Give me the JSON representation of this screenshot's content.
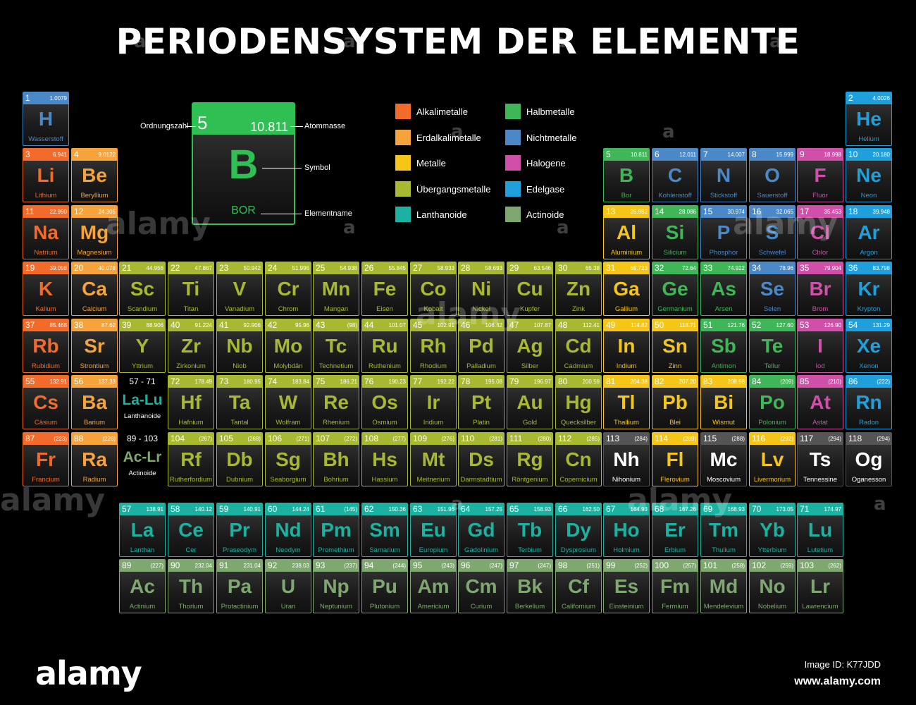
{
  "title": "PERIODENSYSTEM DER ELEMENTE",
  "colors": {
    "alkali": "#f26b2a",
    "earth": "#f5a33a",
    "metal": "#f5c518",
    "transition": "#a8b830",
    "lanthanide": "#1bb2a2",
    "metalloid": "#3fb658",
    "nonmetal": "#4a88c8",
    "halogen": "#d04fa8",
    "noble": "#1fa0dc",
    "actinide": "#7fa870",
    "unknown": "#555555"
  },
  "legend": [
    {
      "key": "alkali",
      "label": "Alkalimetalle"
    },
    {
      "key": "earth",
      "label": "Erdalkalimetalle"
    },
    {
      "key": "metal",
      "label": "Metalle"
    },
    {
      "key": "transition",
      "label": "Übergangsmetalle"
    },
    {
      "key": "lanthanide",
      "label": "Lanthanoide"
    },
    {
      "key": "metalloid",
      "label": "Halbmetalle"
    },
    {
      "key": "nonmetal",
      "label": "Nichtmetalle"
    },
    {
      "key": "halogen",
      "label": "Halogene"
    },
    {
      "key": "noble",
      "label": "Edelgase"
    },
    {
      "key": "actinide",
      "label": "Actinoide"
    }
  ],
  "key_card": {
    "number": "5",
    "mass": "10.811",
    "symbol": "B",
    "name": "BOR",
    "label_number": "Ordnungszahl",
    "label_mass": "Atommasse",
    "label_symbol": "Symbol",
    "label_name": "Elementname"
  },
  "placeholders": {
    "lanthanides": {
      "range": "57 - 71",
      "symbol": "La-Lu",
      "name": "Lanthanoide"
    },
    "actinides": {
      "range": "89 - 103",
      "symbol": "Ac-Lr",
      "name": "Actinoide"
    }
  },
  "elements": [
    {
      "n": 1,
      "s": "H",
      "name": "Wasserstoff",
      "m": "1.0079",
      "cat": "nonmetal",
      "r": 1,
      "c": 1
    },
    {
      "n": 2,
      "s": "He",
      "name": "Helium",
      "m": "4.0026",
      "cat": "noble",
      "r": 1,
      "c": 18
    },
    {
      "n": 3,
      "s": "Li",
      "name": "Lithium",
      "m": "6.941",
      "cat": "alkali",
      "r": 2,
      "c": 1
    },
    {
      "n": 4,
      "s": "Be",
      "name": "Beryllium",
      "m": "9.0122",
      "cat": "earth",
      "r": 2,
      "c": 2
    },
    {
      "n": 5,
      "s": "B",
      "name": "Bor",
      "m": "10.811",
      "cat": "metalloid",
      "r": 2,
      "c": 13
    },
    {
      "n": 6,
      "s": "C",
      "name": "Kohlenstoff",
      "m": "12.011",
      "cat": "nonmetal",
      "r": 2,
      "c": 14
    },
    {
      "n": 7,
      "s": "N",
      "name": "Stickstoff",
      "m": "14.007",
      "cat": "nonmetal",
      "r": 2,
      "c": 15
    },
    {
      "n": 8,
      "s": "O",
      "name": "Sauerstoff",
      "m": "15.999",
      "cat": "nonmetal",
      "r": 2,
      "c": 16
    },
    {
      "n": 9,
      "s": "F",
      "name": "Fluor",
      "m": "18.998",
      "cat": "halogen",
      "r": 2,
      "c": 17
    },
    {
      "n": 10,
      "s": "Ne",
      "name": "Neon",
      "m": "20.180",
      "cat": "noble",
      "r": 2,
      "c": 18
    },
    {
      "n": 11,
      "s": "Na",
      "name": "Natrium",
      "m": "22.990",
      "cat": "alkali",
      "r": 3,
      "c": 1
    },
    {
      "n": 12,
      "s": "Mg",
      "name": "Magnesium",
      "m": "24.305",
      "cat": "earth",
      "r": 3,
      "c": 2
    },
    {
      "n": 13,
      "s": "Al",
      "name": "Aluminium",
      "m": "26.982",
      "cat": "metal",
      "r": 3,
      "c": 13
    },
    {
      "n": 14,
      "s": "Si",
      "name": "Silicium",
      "m": "28.086",
      "cat": "metalloid",
      "r": 3,
      "c": 14
    },
    {
      "n": 15,
      "s": "P",
      "name": "Phosphor",
      "m": "30.974",
      "cat": "nonmetal",
      "r": 3,
      "c": 15
    },
    {
      "n": 16,
      "s": "S",
      "name": "Schwefel",
      "m": "32.065",
      "cat": "nonmetal",
      "r": 3,
      "c": 16
    },
    {
      "n": 17,
      "s": "Cl",
      "name": "Chlor",
      "m": "35.453",
      "cat": "halogen",
      "r": 3,
      "c": 17
    },
    {
      "n": 18,
      "s": "Ar",
      "name": "Argon",
      "m": "39.948",
      "cat": "noble",
      "r": 3,
      "c": 18
    },
    {
      "n": 19,
      "s": "K",
      "name": "Kalium",
      "m": "39.098",
      "cat": "alkali",
      "r": 4,
      "c": 1
    },
    {
      "n": 20,
      "s": "Ca",
      "name": "Calcium",
      "m": "40.078",
      "cat": "earth",
      "r": 4,
      "c": 2
    },
    {
      "n": 21,
      "s": "Sc",
      "name": "Scandium",
      "m": "44.956",
      "cat": "transition",
      "r": 4,
      "c": 3
    },
    {
      "n": 22,
      "s": "Ti",
      "name": "Titan",
      "m": "47.867",
      "cat": "transition",
      "r": 4,
      "c": 4
    },
    {
      "n": 23,
      "s": "V",
      "name": "Vanadium",
      "m": "50.942",
      "cat": "transition",
      "r": 4,
      "c": 5
    },
    {
      "n": 24,
      "s": "Cr",
      "name": "Chrom",
      "m": "51.996",
      "cat": "transition",
      "r": 4,
      "c": 6
    },
    {
      "n": 25,
      "s": "Mn",
      "name": "Mangan",
      "m": "54.938",
      "cat": "transition",
      "r": 4,
      "c": 7
    },
    {
      "n": 26,
      "s": "Fe",
      "name": "Eisen",
      "m": "55.845",
      "cat": "transition",
      "r": 4,
      "c": 8
    },
    {
      "n": 27,
      "s": "Co",
      "name": "Kobalt",
      "m": "58.933",
      "cat": "transition",
      "r": 4,
      "c": 9
    },
    {
      "n": 28,
      "s": "Ni",
      "name": "Nickel",
      "m": "58.693",
      "cat": "transition",
      "r": 4,
      "c": 10
    },
    {
      "n": 29,
      "s": "Cu",
      "name": "Kupfer",
      "m": "63.546",
      "cat": "transition",
      "r": 4,
      "c": 11
    },
    {
      "n": 30,
      "s": "Zn",
      "name": "Zink",
      "m": "65.38",
      "cat": "transition",
      "r": 4,
      "c": 12
    },
    {
      "n": 31,
      "s": "Ga",
      "name": "Gallium",
      "m": "69.723",
      "cat": "metal",
      "r": 4,
      "c": 13
    },
    {
      "n": 32,
      "s": "Ge",
      "name": "Germanium",
      "m": "72.64",
      "cat": "metalloid",
      "r": 4,
      "c": 14
    },
    {
      "n": 33,
      "s": "As",
      "name": "Arsen",
      "m": "74.922",
      "cat": "metalloid",
      "r": 4,
      "c": 15
    },
    {
      "n": 34,
      "s": "Se",
      "name": "Selen",
      "m": "78.96",
      "cat": "nonmetal",
      "r": 4,
      "c": 16
    },
    {
      "n": 35,
      "s": "Br",
      "name": "Brom",
      "m": "79.904",
      "cat": "halogen",
      "r": 4,
      "c": 17
    },
    {
      "n": 36,
      "s": "Kr",
      "name": "Krypton",
      "m": "83.798",
      "cat": "noble",
      "r": 4,
      "c": 18
    },
    {
      "n": 37,
      "s": "Rb",
      "name": "Rubidium",
      "m": "85.468",
      "cat": "alkali",
      "r": 5,
      "c": 1
    },
    {
      "n": 38,
      "s": "Sr",
      "name": "Strontium",
      "m": "87.62",
      "cat": "earth",
      "r": 5,
      "c": 2
    },
    {
      "n": 39,
      "s": "Y",
      "name": "Yttrium",
      "m": "88.906",
      "cat": "transition",
      "r": 5,
      "c": 3
    },
    {
      "n": 40,
      "s": "Zr",
      "name": "Zirkonium",
      "m": "91.224",
      "cat": "transition",
      "r": 5,
      "c": 4
    },
    {
      "n": 41,
      "s": "Nb",
      "name": "Niob",
      "m": "92.906",
      "cat": "transition",
      "r": 5,
      "c": 5
    },
    {
      "n": 42,
      "s": "Mo",
      "name": "Molybdän",
      "m": "95.96",
      "cat": "transition",
      "r": 5,
      "c": 6
    },
    {
      "n": 43,
      "s": "Tc",
      "name": "Technetium",
      "m": "(98)",
      "cat": "transition",
      "r": 5,
      "c": 7
    },
    {
      "n": 44,
      "s": "Ru",
      "name": "Ruthenium",
      "m": "101.07",
      "cat": "transition",
      "r": 5,
      "c": 8
    },
    {
      "n": 45,
      "s": "Rh",
      "name": "Rhodium",
      "m": "102.91",
      "cat": "transition",
      "r": 5,
      "c": 9
    },
    {
      "n": 46,
      "s": "Pd",
      "name": "Palladium",
      "m": "106.42",
      "cat": "transition",
      "r": 5,
      "c": 10
    },
    {
      "n": 47,
      "s": "Ag",
      "name": "Silber",
      "m": "107.87",
      "cat": "transition",
      "r": 5,
      "c": 11
    },
    {
      "n": 48,
      "s": "Cd",
      "name": "Cadmium",
      "m": "112.41",
      "cat": "transition",
      "r": 5,
      "c": 12
    },
    {
      "n": 49,
      "s": "In",
      "name": "Indium",
      "m": "114.82",
      "cat": "metal",
      "r": 5,
      "c": 13
    },
    {
      "n": 50,
      "s": "Sn",
      "name": "Zinn",
      "m": "118.71",
      "cat": "metal",
      "r": 5,
      "c": 14
    },
    {
      "n": 51,
      "s": "Sb",
      "name": "Antimon",
      "m": "121.76",
      "cat": "metalloid",
      "r": 5,
      "c": 15
    },
    {
      "n": 52,
      "s": "Te",
      "name": "Tellur",
      "m": "127.60",
      "cat": "metalloid",
      "r": 5,
      "c": 16
    },
    {
      "n": 53,
      "s": "I",
      "name": "Iod",
      "m": "126.90",
      "cat": "halogen",
      "r": 5,
      "c": 17
    },
    {
      "n": 54,
      "s": "Xe",
      "name": "Xenon",
      "m": "131.29",
      "cat": "noble",
      "r": 5,
      "c": 18
    },
    {
      "n": 55,
      "s": "Cs",
      "name": "Cäsium",
      "m": "132.91",
      "cat": "alkali",
      "r": 6,
      "c": 1
    },
    {
      "n": 56,
      "s": "Ba",
      "name": "Barium",
      "m": "137.33",
      "cat": "earth",
      "r": 6,
      "c": 2
    },
    {
      "n": 72,
      "s": "Hf",
      "name": "Hafnium",
      "m": "178.49",
      "cat": "transition",
      "r": 6,
      "c": 4
    },
    {
      "n": 73,
      "s": "Ta",
      "name": "Tantal",
      "m": "180.95",
      "cat": "transition",
      "r": 6,
      "c": 5
    },
    {
      "n": 74,
      "s": "W",
      "name": "Wolfram",
      "m": "183.84",
      "cat": "transition",
      "r": 6,
      "c": 6
    },
    {
      "n": 75,
      "s": "Re",
      "name": "Rhenium",
      "m": "186.21",
      "cat": "transition",
      "r": 6,
      "c": 7
    },
    {
      "n": 76,
      "s": "Os",
      "name": "Osmium",
      "m": "190.23",
      "cat": "transition",
      "r": 6,
      "c": 8
    },
    {
      "n": 77,
      "s": "Ir",
      "name": "Iridium",
      "m": "192.22",
      "cat": "transition",
      "r": 6,
      "c": 9
    },
    {
      "n": 78,
      "s": "Pt",
      "name": "Platin",
      "m": "195.08",
      "cat": "transition",
      "r": 6,
      "c": 10
    },
    {
      "n": 79,
      "s": "Au",
      "name": "Gold",
      "m": "196.97",
      "cat": "transition",
      "r": 6,
      "c": 11
    },
    {
      "n": 80,
      "s": "Hg",
      "name": "Quecksilber",
      "m": "200.59",
      "cat": "transition",
      "r": 6,
      "c": 12
    },
    {
      "n": 81,
      "s": "Tl",
      "name": "Thallium",
      "m": "204.38",
      "cat": "metal",
      "r": 6,
      "c": 13
    },
    {
      "n": 82,
      "s": "Pb",
      "name": "Blei",
      "m": "207.20",
      "cat": "metal",
      "r": 6,
      "c": 14
    },
    {
      "n": 83,
      "s": "Bi",
      "name": "Wismut",
      "m": "208.98",
      "cat": "metal",
      "r": 6,
      "c": 15
    },
    {
      "n": 84,
      "s": "Po",
      "name": "Polonium",
      "m": "(209)",
      "cat": "metalloid",
      "r": 6,
      "c": 16
    },
    {
      "n": 85,
      "s": "At",
      "name": "Astat",
      "m": "(210)",
      "cat": "halogen",
      "r": 6,
      "c": 17
    },
    {
      "n": 86,
      "s": "Rn",
      "name": "Radon",
      "m": "(222)",
      "cat": "noble",
      "r": 6,
      "c": 18
    },
    {
      "n": 87,
      "s": "Fr",
      "name": "Francium",
      "m": "(223)",
      "cat": "alkali",
      "r": 7,
      "c": 1
    },
    {
      "n": 88,
      "s": "Ra",
      "name": "Radium",
      "m": "(226)",
      "cat": "earth",
      "r": 7,
      "c": 2
    },
    {
      "n": 104,
      "s": "Rf",
      "name": "Rutherfordium",
      "m": "(267)",
      "cat": "transition",
      "r": 7,
      "c": 4
    },
    {
      "n": 105,
      "s": "Db",
      "name": "Dubnium",
      "m": "(268)",
      "cat": "transition",
      "r": 7,
      "c": 5
    },
    {
      "n": 106,
      "s": "Sg",
      "name": "Seaborgium",
      "m": "(271)",
      "cat": "transition",
      "r": 7,
      "c": 6
    },
    {
      "n": 107,
      "s": "Bh",
      "name": "Bohrium",
      "m": "(272)",
      "cat": "transition",
      "r": 7,
      "c": 7
    },
    {
      "n": 108,
      "s": "Hs",
      "name": "Hassium",
      "m": "(277)",
      "cat": "transition",
      "r": 7,
      "c": 8
    },
    {
      "n": 109,
      "s": "Mt",
      "name": "Meitnerium",
      "m": "(276)",
      "cat": "transition",
      "r": 7,
      "c": 9
    },
    {
      "n": 110,
      "s": "Ds",
      "name": "Darmstadtium",
      "m": "(281)",
      "cat": "transition",
      "r": 7,
      "c": 10
    },
    {
      "n": 111,
      "s": "Rg",
      "name": "Röntgenium",
      "m": "(280)",
      "cat": "transition",
      "r": 7,
      "c": 11
    },
    {
      "n": 112,
      "s": "Cn",
      "name": "Copernicium",
      "m": "(285)",
      "cat": "transition",
      "r": 7,
      "c": 12
    },
    {
      "n": 113,
      "s": "Nh",
      "name": "Nihonium",
      "m": "(284)",
      "cat": "unknown",
      "r": 7,
      "c": 13
    },
    {
      "n": 114,
      "s": "Fl",
      "name": "Flerovium",
      "m": "(289)",
      "cat": "metal",
      "r": 7,
      "c": 14
    },
    {
      "n": 115,
      "s": "Mc",
      "name": "Moscovium",
      "m": "(288)",
      "cat": "unknown",
      "r": 7,
      "c": 15
    },
    {
      "n": 116,
      "s": "Lv",
      "name": "Livermorium",
      "m": "(292)",
      "cat": "metal",
      "r": 7,
      "c": 16
    },
    {
      "n": 117,
      "s": "Ts",
      "name": "Tennessine",
      "m": "(294)",
      "cat": "unknown",
      "r": 7,
      "c": 17
    },
    {
      "n": 118,
      "s": "Og",
      "name": "Oganesson",
      "m": "(294)",
      "cat": "unknown",
      "r": 7,
      "c": 18
    },
    {
      "n": 57,
      "s": "La",
      "name": "Lanthan",
      "m": "138.91",
      "cat": "lanthanide",
      "r": 9,
      "c": 3
    },
    {
      "n": 58,
      "s": "Ce",
      "name": "Cer",
      "m": "140.12",
      "cat": "lanthanide",
      "r": 9,
      "c": 4
    },
    {
      "n": 59,
      "s": "Pr",
      "name": "Praseodym",
      "m": "140.91",
      "cat": "lanthanide",
      "r": 9,
      "c": 5
    },
    {
      "n": 60,
      "s": "Nd",
      "name": "Neodym",
      "m": "144.24",
      "cat": "lanthanide",
      "r": 9,
      "c": 6
    },
    {
      "n": 61,
      "s": "Pm",
      "name": "Promethium",
      "m": "(145)",
      "cat": "lanthanide",
      "r": 9,
      "c": 7
    },
    {
      "n": 62,
      "s": "Sm",
      "name": "Samarium",
      "m": "150.36",
      "cat": "lanthanide",
      "r": 9,
      "c": 8
    },
    {
      "n": 63,
      "s": "Eu",
      "name": "Europium",
      "m": "151.96",
      "cat": "lanthanide",
      "r": 9,
      "c": 9
    },
    {
      "n": 64,
      "s": "Gd",
      "name": "Gadolinium",
      "m": "157.25",
      "cat": "lanthanide",
      "r": 9,
      "c": 10
    },
    {
      "n": 65,
      "s": "Tb",
      "name": "Terbium",
      "m": "158.93",
      "cat": "lanthanide",
      "r": 9,
      "c": 11
    },
    {
      "n": 66,
      "s": "Dy",
      "name": "Dysprosium",
      "m": "162.50",
      "cat": "lanthanide",
      "r": 9,
      "c": 12
    },
    {
      "n": 67,
      "s": "Ho",
      "name": "Holmium",
      "m": "164.93",
      "cat": "lanthanide",
      "r": 9,
      "c": 13
    },
    {
      "n": 68,
      "s": "Er",
      "name": "Erbium",
      "m": "167.26",
      "cat": "lanthanide",
      "r": 9,
      "c": 14
    },
    {
      "n": 69,
      "s": "Tm",
      "name": "Thulium",
      "m": "168.93",
      "cat": "lanthanide",
      "r": 9,
      "c": 15
    },
    {
      "n": 70,
      "s": "Yb",
      "name": "Ytterbium",
      "m": "173.05",
      "cat": "lanthanide",
      "r": 9,
      "c": 16
    },
    {
      "n": 71,
      "s": "Lu",
      "name": "Lutetium",
      "m": "174.97",
      "cat": "lanthanide",
      "r": 9,
      "c": 17
    },
    {
      "n": 89,
      "s": "Ac",
      "name": "Actinium",
      "m": "(227)",
      "cat": "actinide",
      "r": 10,
      "c": 3
    },
    {
      "n": 90,
      "s": "Th",
      "name": "Thorium",
      "m": "232.04",
      "cat": "actinide",
      "r": 10,
      "c": 4
    },
    {
      "n": 91,
      "s": "Pa",
      "name": "Protactinium",
      "m": "231.04",
      "cat": "actinide",
      "r": 10,
      "c": 5
    },
    {
      "n": 92,
      "s": "U",
      "name": "Uran",
      "m": "238.03",
      "cat": "actinide",
      "r": 10,
      "c": 6
    },
    {
      "n": 93,
      "s": "Np",
      "name": "Neptunium",
      "m": "(237)",
      "cat": "actinide",
      "r": 10,
      "c": 7
    },
    {
      "n": 94,
      "s": "Pu",
      "name": "Plutonium",
      "m": "(244)",
      "cat": "actinide",
      "r": 10,
      "c": 8
    },
    {
      "n": 95,
      "s": "Am",
      "name": "Americium",
      "m": "(243)",
      "cat": "actinide",
      "r": 10,
      "c": 9
    },
    {
      "n": 96,
      "s": "Cm",
      "name": "Curium",
      "m": "(247)",
      "cat": "actinide",
      "r": 10,
      "c": 10
    },
    {
      "n": 97,
      "s": "Bk",
      "name": "Berkelium",
      "m": "(247)",
      "cat": "actinide",
      "r": 10,
      "c": 11
    },
    {
      "n": 98,
      "s": "Cf",
      "name": "Californium",
      "m": "(251)",
      "cat": "actinide",
      "r": 10,
      "c": 12
    },
    {
      "n": 99,
      "s": "Es",
      "name": "Einsteinium",
      "m": "(252)",
      "cat": "actinide",
      "r": 10,
      "c": 13
    },
    {
      "n": 100,
      "s": "Fm",
      "name": "Fermium",
      "m": "(257)",
      "cat": "actinide",
      "r": 10,
      "c": 14
    },
    {
      "n": 101,
      "s": "Md",
      "name": "Mendelevium",
      "m": "(258)",
      "cat": "actinide",
      "r": 10,
      "c": 15
    },
    {
      "n": 102,
      "s": "No",
      "name": "Nobelium",
      "m": "(259)",
      "cat": "actinide",
      "r": 10,
      "c": 16
    },
    {
      "n": 103,
      "s": "Lr",
      "name": "Lawrencium",
      "m": "(262)",
      "cat": "actinide",
      "r": 10,
      "c": 17
    }
  ],
  "watermark": {
    "logo": "alamy",
    "mark": "a",
    "stock_id": "Image ID: K77JDD",
    "url": "www.alamy.com"
  }
}
